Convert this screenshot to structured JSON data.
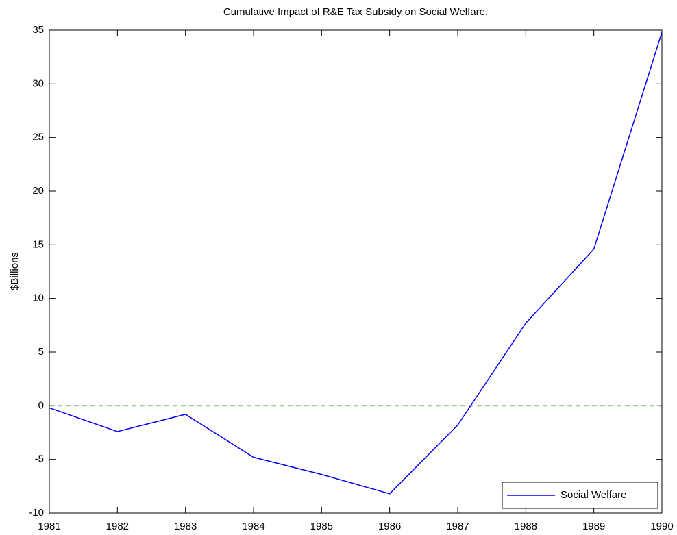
{
  "chart_data": {
    "type": "line",
    "title": "Cumulative Impact of R&E Tax Subsidy on Social Welfare.",
    "y_label": "$Billions",
    "x": [
      1981,
      1982,
      1983,
      1984,
      1985,
      1986,
      1987,
      1988,
      1989,
      1990
    ],
    "series": [
      {
        "name": "Social Welfare",
        "color": "#0000ff",
        "values": [
          -0.2,
          -2.4,
          -0.8,
          -4.8,
          -6.4,
          -8.2,
          -1.8,
          7.7,
          14.6,
          34.8
        ]
      }
    ],
    "reference_line": {
      "value": 0,
      "color": "#008000",
      "style": "dashed"
    },
    "xlim": [
      1981,
      1990
    ],
    "xticks": [
      1981,
      1982,
      1983,
      1984,
      1985,
      1986,
      1987,
      1988,
      1989,
      1990
    ],
    "ylim": [
      -10,
      35
    ],
    "yticks": [
      -10,
      -5,
      0,
      5,
      10,
      15,
      20,
      25,
      30,
      35
    ],
    "grid": false,
    "legend": "lower right"
  }
}
